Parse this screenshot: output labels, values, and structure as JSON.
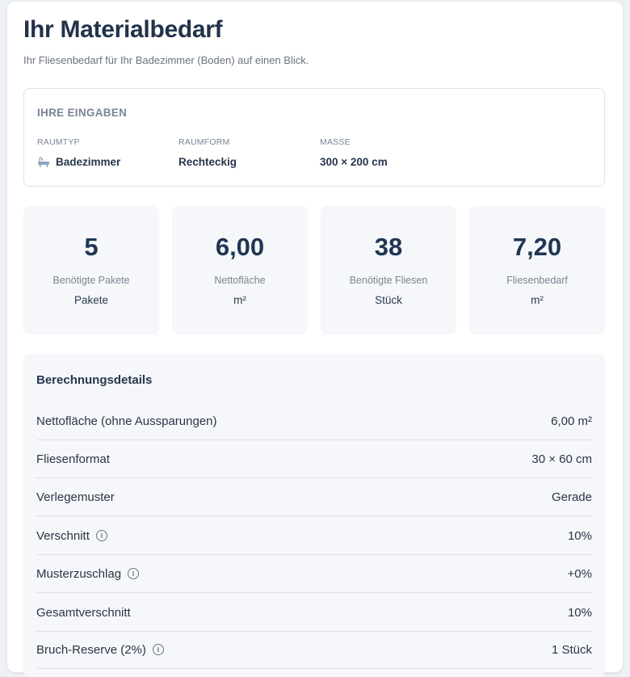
{
  "header": {
    "title": "Ihr Materialbedarf",
    "subtitle": "Ihr Fliesenbedarf für Ihr Badezimmer (Boden) auf einen Blick."
  },
  "inputs": {
    "heading": "IHRE EINGABEN",
    "fields": [
      {
        "label": "RAUMTYP",
        "value": "Badezimmer",
        "icon": "bathtub-icon"
      },
      {
        "label": "RAUMFORM",
        "value": "Rechteckig"
      },
      {
        "label": "MASSE",
        "value": "300 × 200 cm"
      }
    ]
  },
  "stats": [
    {
      "value": "5",
      "label": "Benötigte Pakete",
      "unit": "Pakete"
    },
    {
      "value": "6,00",
      "label": "Nettofläche",
      "unit": "m²"
    },
    {
      "value": "38",
      "label": "Benötigte Fliesen",
      "unit": "Stück"
    },
    {
      "value": "7,20",
      "label": "Fliesenbedarf",
      "unit": "m²"
    }
  ],
  "details": {
    "title": "Berechnungsdetails",
    "rows": [
      {
        "label": "Nettofläche (ohne Aussparungen)",
        "value": "6,00 m²"
      },
      {
        "label": "Fliesenformat",
        "value": "30 × 60 cm"
      },
      {
        "label": "Verlegemuster",
        "value": "Gerade"
      },
      {
        "label": "Verschnitt",
        "value": "10%",
        "info": "i"
      },
      {
        "label": "Musterzuschlag",
        "value": "+0%",
        "info": "i"
      },
      {
        "label": "Gesamtverschnitt",
        "value": "10%"
      },
      {
        "label": "Bruch-Reserve (2%)",
        "value": "1 Stück",
        "info": "i"
      }
    ]
  },
  "colors": {
    "accent": "#1f3552",
    "card_bg": "#f5f7fa",
    "muted": "#7a8594"
  }
}
